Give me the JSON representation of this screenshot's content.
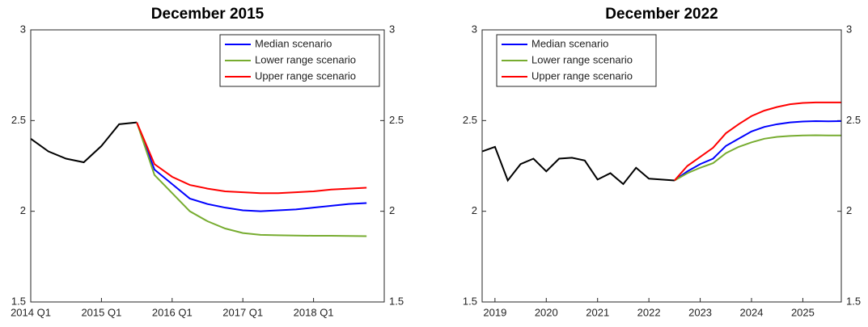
{
  "chart_data": [
    {
      "type": "line",
      "title": "December 2015",
      "x": [
        2014,
        2014.25,
        2014.5,
        2014.75,
        2015,
        2015.25,
        2015.5,
        2015.75,
        2016,
        2016.25,
        2016.5,
        2016.75,
        2017,
        2017.25,
        2017.5,
        2017.75,
        2018,
        2018.25,
        2018.5,
        2018.75
      ],
      "xlim": [
        2014,
        2019
      ],
      "xticks": [
        {
          "value": 2014,
          "label": "2014 Q1"
        },
        {
          "value": 2015,
          "label": "2015 Q1"
        },
        {
          "value": 2016,
          "label": "2016 Q1"
        },
        {
          "value": 2017,
          "label": "2017 Q1"
        },
        {
          "value": 2018,
          "label": "2018 Q1"
        }
      ],
      "ylim": [
        1.5,
        3
      ],
      "yticks": [
        1.5,
        2,
        2.5,
        3
      ],
      "y2lim": [
        1.5,
        3
      ],
      "y2ticks": [
        1.5,
        2,
        2.5,
        3
      ],
      "legend": "upper right",
      "series": [
        {
          "color": "#000000",
          "values": [
            2.4,
            2.33,
            2.29,
            2.27,
            2.36,
            2.48,
            2.49,
            null,
            null,
            null,
            null,
            null,
            null,
            null,
            null,
            null,
            null,
            null,
            null,
            null
          ]
        },
        {
          "name": "Median scenario",
          "color": "#0000ff",
          "values": [
            null,
            null,
            null,
            null,
            null,
            null,
            2.49,
            2.23,
            2.15,
            2.07,
            2.04,
            2.02,
            2.005,
            2.0,
            2.005,
            2.01,
            2.02,
            2.03,
            2.04,
            2.045
          ]
        },
        {
          "name": "Lower range scenario",
          "color": "#77ac30",
          "values": [
            null,
            null,
            null,
            null,
            null,
            null,
            2.49,
            2.2,
            2.1,
            2.0,
            1.945,
            1.905,
            1.88,
            1.87,
            1.868,
            1.866,
            1.865,
            1.865,
            1.864,
            1.863
          ]
        },
        {
          "name": "Upper range scenario",
          "color": "#ff0000",
          "values": [
            null,
            null,
            null,
            null,
            null,
            null,
            2.49,
            2.26,
            2.19,
            2.145,
            2.125,
            2.11,
            2.105,
            2.1,
            2.1,
            2.105,
            2.11,
            2.12,
            2.125,
            2.13
          ]
        }
      ]
    },
    {
      "type": "line",
      "title": "December 2022",
      "x": [
        2018.75,
        2019,
        2019.25,
        2019.5,
        2019.75,
        2020,
        2020.25,
        2020.5,
        2020.75,
        2021,
        2021.25,
        2021.5,
        2021.75,
        2022,
        2022.25,
        2022.5,
        2022.75,
        2023,
        2023.25,
        2023.5,
        2023.75,
        2024,
        2024.25,
        2024.5,
        2024.75,
        2025,
        2025.25,
        2025.5,
        2025.75
      ],
      "xlim": [
        2018.75,
        2025.75
      ],
      "xticks": [
        2019,
        2020,
        2021,
        2022,
        2023,
        2024,
        2025
      ],
      "ylim": [
        1.5,
        3
      ],
      "yticks": [
        1.5,
        2,
        2.5,
        3
      ],
      "y2lim": [
        1.5,
        3
      ],
      "y2ticks": [
        1.5,
        2,
        2.5,
        3
      ],
      "legend": "upper left",
      "series": [
        {
          "color": "#000000",
          "values": [
            2.33,
            2.355,
            2.17,
            2.26,
            2.29,
            2.22,
            2.29,
            2.295,
            2.28,
            2.175,
            2.21,
            2.15,
            2.24,
            2.18,
            2.175,
            2.17,
            null,
            null,
            null,
            null,
            null,
            null,
            null,
            null,
            null,
            null,
            null,
            null,
            null
          ]
        },
        {
          "name": "Median scenario",
          "color": "#0000ff",
          "values": [
            null,
            null,
            null,
            null,
            null,
            null,
            null,
            null,
            null,
            null,
            null,
            null,
            null,
            null,
            null,
            2.17,
            2.22,
            2.26,
            2.29,
            2.36,
            2.4,
            2.44,
            2.465,
            2.48,
            2.49,
            2.495,
            2.497,
            2.496,
            2.497
          ]
        },
        {
          "name": "Lower range scenario",
          "color": "#77ac30",
          "values": [
            null,
            null,
            null,
            null,
            null,
            null,
            null,
            null,
            null,
            null,
            null,
            null,
            null,
            null,
            null,
            2.17,
            2.21,
            2.24,
            2.265,
            2.32,
            2.355,
            2.38,
            2.4,
            2.41,
            2.415,
            2.418,
            2.419,
            2.418,
            2.418
          ]
        },
        {
          "name": "Upper range scenario",
          "color": "#ff0000",
          "values": [
            null,
            null,
            null,
            null,
            null,
            null,
            null,
            null,
            null,
            null,
            null,
            null,
            null,
            null,
            null,
            2.17,
            2.25,
            2.3,
            2.35,
            2.43,
            2.48,
            2.525,
            2.555,
            2.575,
            2.59,
            2.597,
            2.6,
            2.6,
            2.6
          ]
        }
      ]
    }
  ]
}
